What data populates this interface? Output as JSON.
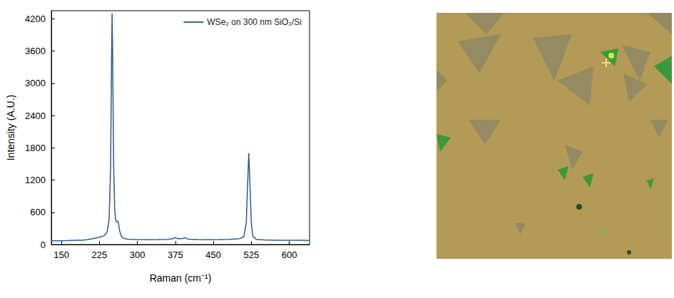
{
  "chart_data": {
    "type": "line",
    "x_label": "Raman (cm⁻¹)",
    "y_label": "Intensity (A.U.)",
    "xlim": [
      130,
      640
    ],
    "xticks": [
      150,
      225,
      300,
      375,
      450,
      525,
      600
    ],
    "ylim": [
      0,
      4350
    ],
    "yticks": [
      0,
      600,
      1200,
      1800,
      2400,
      3000,
      3600,
      4200
    ],
    "grid": false,
    "legend": "top-right",
    "series": [
      {
        "name": "WSe₂ on 300 nm SiO₂/Si",
        "color": "#2b5d8e",
        "line_style": "solid",
        "x": [
          130,
          140,
          150,
          160,
          170,
          180,
          190,
          200,
          210,
          220,
          225,
          230,
          235,
          240,
          244,
          247,
          249,
          250,
          251,
          253,
          255,
          257,
          259,
          261,
          263,
          265,
          268,
          272,
          280,
          290,
          300,
          320,
          340,
          360,
          370,
          375,
          380,
          390,
          395,
          400,
          420,
          440,
          460,
          480,
          500,
          510,
          515,
          518,
          520,
          522,
          525,
          528,
          535,
          550,
          575,
          600,
          620,
          640
        ],
        "values": [
          68,
          69,
          70,
          72,
          75,
          78,
          80,
          90,
          105,
          125,
          135,
          150,
          170,
          230,
          450,
          1400,
          3500,
          4300,
          3600,
          1500,
          700,
          450,
          420,
          440,
          380,
          250,
          160,
          120,
          100,
          95,
          92,
          90,
          92,
          95,
          110,
          130,
          105,
          115,
          125,
          100,
          92,
          90,
          92,
          95,
          105,
          140,
          400,
          1200,
          1700,
          1200,
          400,
          150,
          95,
          85,
          80,
          80,
          78,
          75
        ]
      }
    ]
  }
}
